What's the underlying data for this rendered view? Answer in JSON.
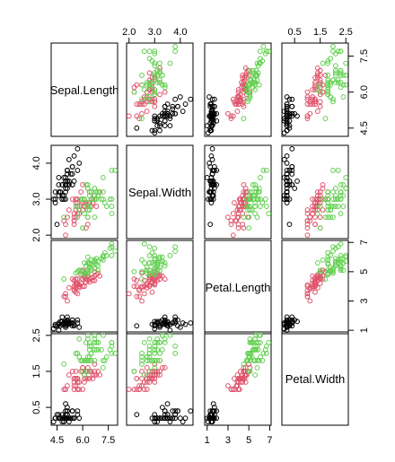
{
  "chart_data": {
    "type": "scatter",
    "subtype": "pairs-matrix",
    "variables": [
      "Sepal.Length",
      "Sepal.Width",
      "Petal.Length",
      "Petal.Width"
    ],
    "ranges": [
      [
        4.3,
        7.9
      ],
      [
        2.0,
        4.4
      ],
      [
        1.0,
        6.9
      ],
      [
        0.1,
        2.5
      ]
    ],
    "ticks": [
      [
        "4.5",
        "6.0",
        "7.5"
      ],
      [
        "2.0",
        "3.0",
        "4.0"
      ],
      [
        "1",
        "3",
        "5",
        "7"
      ],
      [
        "0.5",
        "1.5",
        "2.5"
      ]
    ],
    "tick_values": [
      [
        4.5,
        6.0,
        7.5
      ],
      [
        2.0,
        3.0,
        4.0
      ],
      [
        1,
        3,
        5,
        7
      ],
      [
        0.5,
        1.5,
        2.5
      ]
    ],
    "grid": false,
    "legend": "none",
    "group_colors": [
      "#000000",
      "#DF536B",
      "#61D04F"
    ],
    "groups": [
      {
        "color": "#000000",
        "points": [
          [
            5.1,
            3.5,
            1.4,
            0.2
          ],
          [
            4.9,
            3.0,
            1.4,
            0.2
          ],
          [
            4.7,
            3.2,
            1.3,
            0.2
          ],
          [
            4.6,
            3.1,
            1.5,
            0.2
          ],
          [
            5.0,
            3.6,
            1.4,
            0.2
          ],
          [
            5.4,
            3.9,
            1.7,
            0.4
          ],
          [
            4.6,
            3.4,
            1.4,
            0.3
          ],
          [
            5.0,
            3.4,
            1.5,
            0.2
          ],
          [
            4.4,
            2.9,
            1.4,
            0.2
          ],
          [
            4.9,
            3.1,
            1.5,
            0.1
          ],
          [
            5.4,
            3.7,
            1.5,
            0.2
          ],
          [
            4.8,
            3.4,
            1.6,
            0.2
          ],
          [
            4.8,
            3.0,
            1.4,
            0.1
          ],
          [
            4.3,
            3.0,
            1.1,
            0.1
          ],
          [
            5.8,
            4.0,
            1.2,
            0.2
          ],
          [
            5.7,
            4.4,
            1.5,
            0.4
          ],
          [
            5.4,
            3.9,
            1.3,
            0.4
          ],
          [
            5.1,
            3.5,
            1.4,
            0.3
          ],
          [
            5.7,
            3.8,
            1.7,
            0.3
          ],
          [
            5.1,
            3.8,
            1.5,
            0.3
          ],
          [
            5.4,
            3.4,
            1.7,
            0.2
          ],
          [
            5.1,
            3.7,
            1.5,
            0.4
          ],
          [
            4.6,
            3.6,
            1.0,
            0.2
          ],
          [
            5.1,
            3.3,
            1.7,
            0.5
          ],
          [
            4.8,
            3.4,
            1.9,
            0.2
          ],
          [
            5.0,
            3.0,
            1.6,
            0.2
          ],
          [
            5.0,
            3.4,
            1.6,
            0.4
          ],
          [
            5.2,
            3.5,
            1.5,
            0.2
          ],
          [
            5.2,
            3.4,
            1.4,
            0.2
          ],
          [
            4.7,
            3.2,
            1.6,
            0.2
          ],
          [
            4.8,
            3.1,
            1.6,
            0.2
          ],
          [
            5.4,
            3.4,
            1.5,
            0.4
          ],
          [
            5.2,
            4.1,
            1.5,
            0.1
          ],
          [
            5.5,
            4.2,
            1.4,
            0.2
          ],
          [
            4.9,
            3.1,
            1.5,
            0.2
          ],
          [
            5.0,
            3.2,
            1.2,
            0.2
          ],
          [
            5.5,
            3.5,
            1.3,
            0.2
          ],
          [
            4.9,
            3.6,
            1.4,
            0.1
          ],
          [
            4.4,
            3.0,
            1.3,
            0.2
          ],
          [
            5.1,
            3.4,
            1.5,
            0.2
          ],
          [
            5.0,
            3.5,
            1.3,
            0.3
          ],
          [
            4.5,
            2.3,
            1.3,
            0.3
          ],
          [
            4.4,
            3.2,
            1.3,
            0.2
          ],
          [
            5.0,
            3.5,
            1.6,
            0.6
          ],
          [
            5.1,
            3.8,
            1.9,
            0.4
          ],
          [
            4.8,
            3.0,
            1.4,
            0.3
          ],
          [
            5.1,
            3.8,
            1.6,
            0.2
          ],
          [
            4.6,
            3.2,
            1.4,
            0.2
          ],
          [
            5.3,
            3.7,
            1.5,
            0.2
          ],
          [
            5.0,
            3.3,
            1.4,
            0.2
          ]
        ]
      },
      {
        "color": "#DF536B",
        "points": [
          [
            7.0,
            3.2,
            4.7,
            1.4
          ],
          [
            6.4,
            3.2,
            4.5,
            1.5
          ],
          [
            6.9,
            3.1,
            4.9,
            1.5
          ],
          [
            5.5,
            2.3,
            4.0,
            1.3
          ],
          [
            6.5,
            2.8,
            4.6,
            1.5
          ],
          [
            5.7,
            2.8,
            4.5,
            1.3
          ],
          [
            6.3,
            3.3,
            4.7,
            1.6
          ],
          [
            4.9,
            2.4,
            3.3,
            1.0
          ],
          [
            6.6,
            2.9,
            4.6,
            1.3
          ],
          [
            5.2,
            2.7,
            3.9,
            1.4
          ],
          [
            5.0,
            2.0,
            3.5,
            1.0
          ],
          [
            5.9,
            3.0,
            4.2,
            1.5
          ],
          [
            6.0,
            2.2,
            4.0,
            1.0
          ],
          [
            6.1,
            2.9,
            4.7,
            1.4
          ],
          [
            5.6,
            2.9,
            3.6,
            1.3
          ],
          [
            6.7,
            3.1,
            4.4,
            1.4
          ],
          [
            5.6,
            3.0,
            4.5,
            1.5
          ],
          [
            5.8,
            2.7,
            4.1,
            1.0
          ],
          [
            6.2,
            2.2,
            4.5,
            1.5
          ],
          [
            5.6,
            2.5,
            3.9,
            1.1
          ],
          [
            5.9,
            3.2,
            4.8,
            1.8
          ],
          [
            6.1,
            2.8,
            4.0,
            1.3
          ],
          [
            6.3,
            2.5,
            4.9,
            1.5
          ],
          [
            6.1,
            2.8,
            4.7,
            1.2
          ],
          [
            6.4,
            2.9,
            4.3,
            1.3
          ],
          [
            6.6,
            3.0,
            4.4,
            1.4
          ],
          [
            6.8,
            2.8,
            4.8,
            1.4
          ],
          [
            6.7,
            3.0,
            5.0,
            1.7
          ],
          [
            6.0,
            2.9,
            4.5,
            1.5
          ],
          [
            5.7,
            2.6,
            3.5,
            1.0
          ],
          [
            5.5,
            2.4,
            3.8,
            1.1
          ],
          [
            5.5,
            2.4,
            3.7,
            1.0
          ],
          [
            5.8,
            2.7,
            3.9,
            1.2
          ],
          [
            6.0,
            2.7,
            5.1,
            1.6
          ],
          [
            5.4,
            3.0,
            4.5,
            1.5
          ],
          [
            6.0,
            3.4,
            4.5,
            1.6
          ],
          [
            6.7,
            3.1,
            4.7,
            1.5
          ],
          [
            6.3,
            2.3,
            4.4,
            1.3
          ],
          [
            5.6,
            3.0,
            4.1,
            1.3
          ],
          [
            5.5,
            2.5,
            4.0,
            1.3
          ],
          [
            5.5,
            2.6,
            4.4,
            1.2
          ],
          [
            6.1,
            3.0,
            4.6,
            1.4
          ],
          [
            5.8,
            2.6,
            4.0,
            1.2
          ],
          [
            5.0,
            2.3,
            3.3,
            1.0
          ],
          [
            5.6,
            2.7,
            4.2,
            1.3
          ],
          [
            5.7,
            3.0,
            4.2,
            1.2
          ],
          [
            5.7,
            2.9,
            4.2,
            1.3
          ],
          [
            6.2,
            2.9,
            4.3,
            1.3
          ],
          [
            5.1,
            2.5,
            3.0,
            1.1
          ],
          [
            5.7,
            2.8,
            4.1,
            1.3
          ]
        ]
      },
      {
        "color": "#61D04F",
        "points": [
          [
            6.3,
            3.3,
            6.0,
            2.5
          ],
          [
            5.8,
            2.7,
            5.1,
            1.9
          ],
          [
            7.1,
            3.0,
            5.9,
            2.1
          ],
          [
            6.3,
            2.9,
            5.6,
            1.8
          ],
          [
            6.5,
            3.0,
            5.8,
            2.2
          ],
          [
            7.6,
            3.0,
            6.6,
            2.1
          ],
          [
            4.9,
            2.5,
            4.5,
            1.7
          ],
          [
            7.3,
            2.9,
            6.3,
            1.8
          ],
          [
            6.7,
            2.5,
            5.8,
            1.8
          ],
          [
            7.2,
            3.6,
            6.1,
            2.5
          ],
          [
            6.5,
            3.2,
            5.1,
            2.0
          ],
          [
            6.4,
            2.7,
            5.3,
            1.9
          ],
          [
            6.8,
            3.0,
            5.5,
            2.1
          ],
          [
            5.7,
            2.5,
            5.0,
            2.0
          ],
          [
            5.8,
            2.8,
            5.1,
            2.4
          ],
          [
            6.4,
            3.2,
            5.3,
            2.3
          ],
          [
            6.5,
            3.0,
            5.5,
            1.8
          ],
          [
            7.7,
            3.8,
            6.7,
            2.2
          ],
          [
            7.7,
            2.6,
            6.9,
            2.3
          ],
          [
            6.0,
            2.2,
            5.0,
            1.5
          ],
          [
            6.9,
            3.2,
            5.7,
            2.3
          ],
          [
            5.6,
            2.8,
            4.9,
            2.0
          ],
          [
            7.7,
            2.8,
            6.7,
            2.0
          ],
          [
            6.3,
            2.7,
            4.9,
            1.8
          ],
          [
            6.7,
            3.3,
            5.7,
            2.1
          ],
          [
            7.2,
            3.2,
            6.0,
            1.8
          ],
          [
            6.2,
            2.8,
            4.8,
            1.8
          ],
          [
            6.1,
            3.0,
            4.9,
            1.8
          ],
          [
            6.4,
            2.8,
            5.6,
            2.1
          ],
          [
            7.2,
            3.0,
            5.8,
            1.6
          ],
          [
            7.4,
            2.8,
            6.1,
            1.9
          ],
          [
            7.9,
            3.8,
            6.4,
            2.0
          ],
          [
            6.4,
            2.8,
            5.6,
            2.2
          ],
          [
            6.3,
            2.8,
            5.1,
            1.5
          ],
          [
            6.1,
            2.6,
            5.6,
            1.4
          ],
          [
            7.7,
            3.0,
            6.1,
            2.3
          ],
          [
            6.3,
            3.4,
            5.6,
            2.4
          ],
          [
            6.4,
            3.1,
            5.5,
            1.8
          ],
          [
            6.0,
            3.0,
            4.8,
            1.8
          ],
          [
            6.9,
            3.1,
            5.4,
            2.1
          ],
          [
            6.7,
            3.1,
            5.6,
            2.4
          ],
          [
            6.9,
            3.1,
            5.1,
            2.3
          ],
          [
            5.8,
            2.7,
            5.1,
            1.9
          ],
          [
            6.8,
            3.2,
            5.9,
            2.3
          ],
          [
            6.7,
            3.3,
            5.7,
            2.5
          ],
          [
            6.7,
            3.0,
            5.2,
            2.3
          ],
          [
            6.3,
            2.5,
            5.0,
            1.9
          ],
          [
            6.5,
            3.0,
            5.2,
            2.0
          ],
          [
            6.2,
            3.4,
            5.4,
            2.3
          ],
          [
            5.9,
            3.0,
            5.1,
            1.8
          ]
        ]
      }
    ]
  }
}
